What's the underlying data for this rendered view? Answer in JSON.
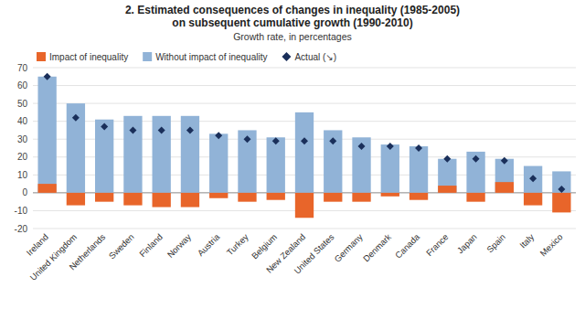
{
  "chart_data": {
    "type": "bar",
    "title": "2. Estimated consequences of changes in inequality (1985-2005)\non subsequent cumulative growth (1990-2010)",
    "subtitle": "Growth rate, in percentages",
    "categories": [
      "Ireland",
      "United Kingdom",
      "Netherlands",
      "Sweden",
      "Finland",
      "Norway",
      "Austria",
      "Turkey",
      "Belgium",
      "New Zealand",
      "United States",
      "Germany",
      "Denmark",
      "Canada",
      "France",
      "Japan",
      "Spain",
      "Italy",
      "Mexico"
    ],
    "series": [
      {
        "name": "Without impact of inequality",
        "type": "bar",
        "color": "#91b3d7",
        "values": [
          65,
          50,
          41,
          43,
          43,
          43,
          33,
          35,
          31,
          45,
          35,
          31,
          27,
          26,
          19,
          23,
          19,
          15,
          12
        ]
      },
      {
        "name": "Impact of inequality",
        "type": "bar",
        "color": "#e8652a",
        "values": [
          5,
          -7,
          -5,
          -7,
          -8,
          -8,
          -3,
          -5,
          -4,
          -14,
          -5,
          -5,
          -2,
          -4,
          4,
          -5,
          6,
          -7,
          -11
        ]
      },
      {
        "name": "Actual (↘)",
        "type": "scatter",
        "marker": "diamond",
        "color": "#1a2f5a",
        "values": [
          65,
          42,
          37,
          35,
          35,
          35,
          32,
          30,
          29,
          29,
          29,
          26,
          26,
          25,
          19,
          19,
          18,
          8,
          2
        ]
      }
    ],
    "ylim": [
      -20,
      70
    ],
    "yticks": [
      -20,
      -10,
      0,
      10,
      20,
      30,
      40,
      50,
      60,
      70
    ],
    "grid": true,
    "legend": "upper left"
  }
}
